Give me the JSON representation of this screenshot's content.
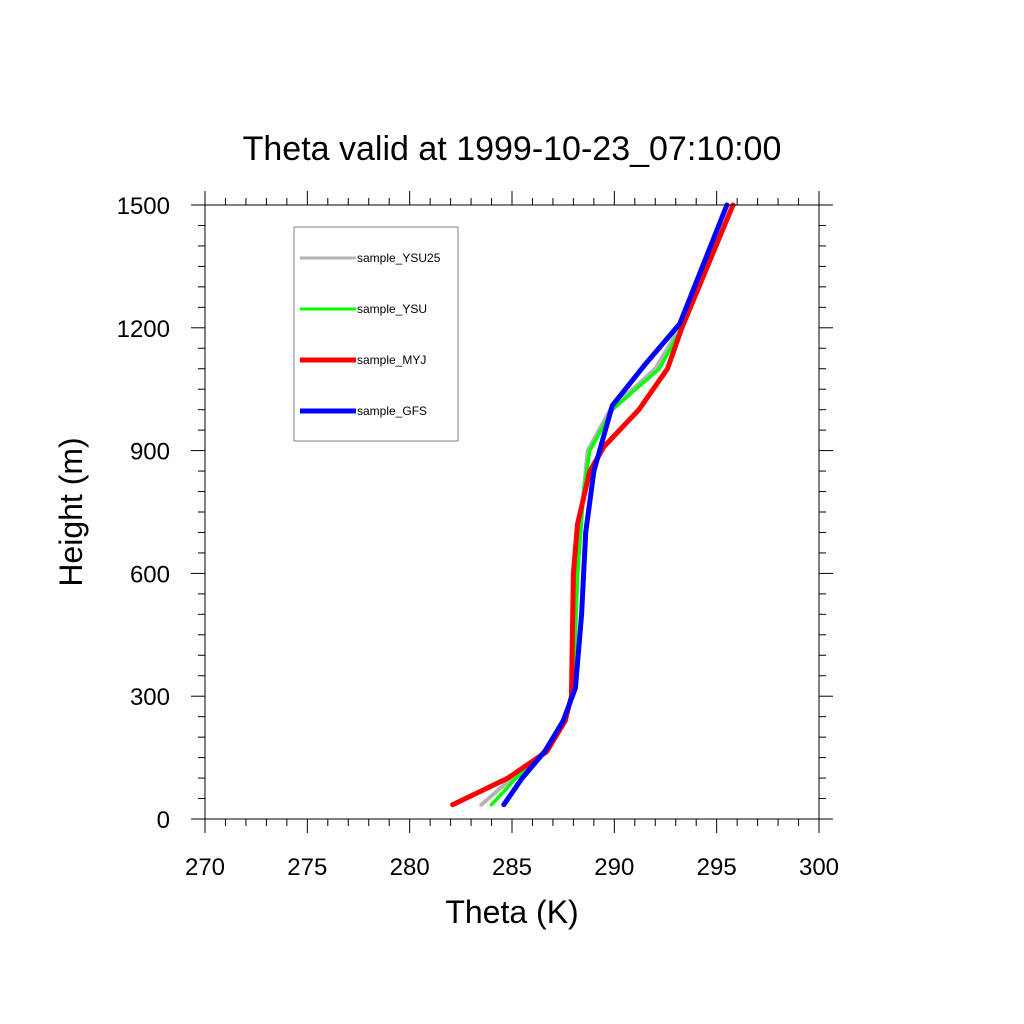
{
  "chart_data": {
    "type": "line",
    "title": "Theta valid at 1999-10-23_07:10:00",
    "xlabel": "Theta (K)",
    "ylabel": "Height (m)",
    "xlim": [
      270,
      300
    ],
    "ylim": [
      0,
      1500
    ],
    "xticks": [
      270,
      275,
      280,
      285,
      290,
      295,
      300
    ],
    "yticks": [
      0,
      300,
      600,
      900,
      1200,
      1500
    ],
    "x_tick_labels": [
      "270",
      "275",
      "280",
      "285",
      "290",
      "295",
      "300"
    ],
    "y_tick_labels": [
      "0",
      "300",
      "600",
      "900",
      "1200",
      "1500"
    ],
    "grid": false,
    "legend_position": "top-left",
    "series": [
      {
        "name": "sample_YSU25",
        "color": "#b4b4b4",
        "x": [
          283.5,
          285.0,
          286.6,
          287.6,
          288.0,
          288.2,
          288.5,
          288.7,
          289.8,
          292.0,
          293.2,
          295.8
        ],
        "y": [
          35,
          100,
          165,
          240,
          320,
          600,
          800,
          900,
          1000,
          1100,
          1200,
          1500
        ]
      },
      {
        "name": "sample_YSU",
        "color": "#00ff00",
        "x": [
          284.0,
          285.2,
          286.6,
          287.6,
          288.0,
          288.2,
          288.5,
          288.8,
          289.9,
          292.2,
          293.3,
          295.8
        ],
        "y": [
          35,
          100,
          165,
          240,
          320,
          600,
          800,
          900,
          1000,
          1100,
          1200,
          1500
        ]
      },
      {
        "name": "sample_MYJ",
        "color": "#ff0000",
        "x": [
          282.1,
          284.8,
          286.7,
          287.6,
          287.9,
          288.0,
          288.2,
          288.8,
          289.5,
          291.2,
          292.6,
          293.3,
          295.8
        ],
        "y": [
          35,
          100,
          165,
          240,
          300,
          600,
          720,
          850,
          910,
          1000,
          1100,
          1200,
          1500
        ]
      },
      {
        "name": "sample_GFS",
        "color": "#0000ff",
        "x": [
          284.6,
          285.5,
          286.6,
          287.5,
          288.1,
          288.4,
          288.6,
          289.0,
          289.9,
          291.5,
          293.2,
          295.5
        ],
        "y": [
          35,
          100,
          165,
          240,
          320,
          500,
          700,
          850,
          1010,
          1110,
          1210,
          1500
        ]
      }
    ]
  }
}
